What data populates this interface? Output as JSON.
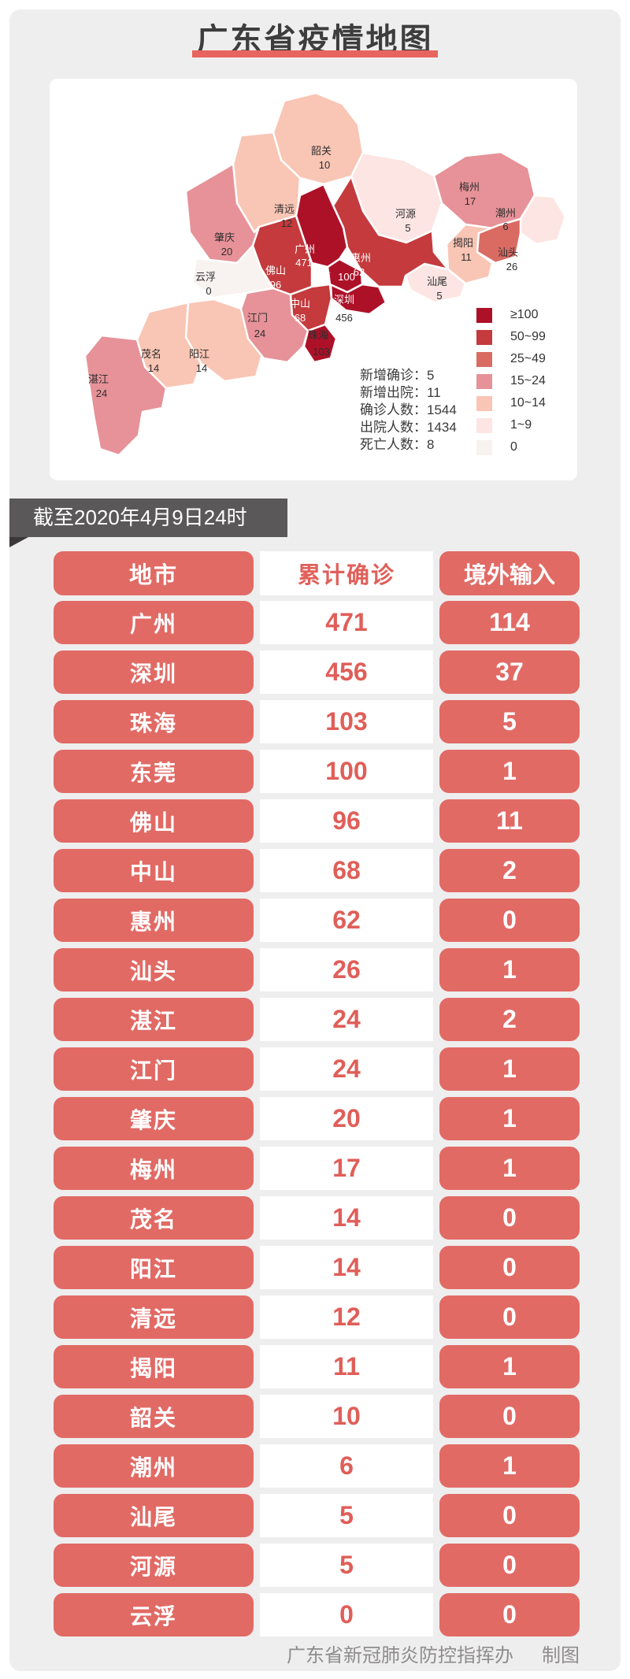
{
  "page": {
    "title": "广东省疫情地图",
    "accent_color": "#e8645e",
    "card_color": "#efeeee"
  },
  "banner": {
    "text": "截至2020年4月9日24时"
  },
  "stats": {
    "lines": [
      {
        "text": "新增确诊：5"
      },
      {
        "text": "新增出院：11"
      },
      {
        "text": "确诊人数：1544"
      },
      {
        "text": "出院人数：1434"
      },
      {
        "text": "死亡人数：8"
      }
    ]
  },
  "legend": {
    "buckets": [
      {
        "label": "≥100",
        "color": "#ad1128"
      },
      {
        "label": "50~99",
        "color": "#c43a3d"
      },
      {
        "label": "25~49",
        "color": "#d96b63"
      },
      {
        "label": "15~24",
        "color": "#e69298"
      },
      {
        "label": "10~14",
        "color": "#f9c5b4"
      },
      {
        "label": "1~9",
        "color": "#fce5e3"
      },
      {
        "label": "0",
        "color": "#f8f2f0"
      }
    ]
  },
  "map": {
    "cities": [
      {
        "name": "韶关",
        "value": "10"
      },
      {
        "name": "清远",
        "value": "12"
      },
      {
        "name": "河源",
        "value": "5"
      },
      {
        "name": "梅州",
        "value": "17"
      },
      {
        "name": "潮州",
        "value": "6"
      },
      {
        "name": "揭阳",
        "value": "11"
      },
      {
        "name": "汕头",
        "value": "26"
      },
      {
        "name": "汕尾",
        "value": "5"
      },
      {
        "name": "惠州",
        "value": "62"
      },
      {
        "name": "广州",
        "value": "471"
      },
      {
        "name": "东莞",
        "value": "100"
      },
      {
        "name": "深圳",
        "value": "456"
      },
      {
        "name": "中山",
        "value": "68"
      },
      {
        "name": "珠海",
        "value": "103"
      },
      {
        "name": "佛山",
        "value": "96"
      },
      {
        "name": "肇庆",
        "value": "20"
      },
      {
        "name": "云浮",
        "value": "0"
      },
      {
        "name": "江门",
        "value": "24"
      },
      {
        "name": "阳江",
        "value": "14"
      },
      {
        "name": "茂名",
        "value": "14"
      },
      {
        "name": "湛江",
        "value": "24"
      }
    ]
  },
  "table": {
    "headers": [
      "地市",
      "累计确诊",
      "境外输入"
    ],
    "rows": [
      [
        "广州",
        "471",
        "114"
      ],
      [
        "深圳",
        "456",
        "37"
      ],
      [
        "珠海",
        "103",
        "5"
      ],
      [
        "东莞",
        "100",
        "1"
      ],
      [
        "佛山",
        "96",
        "11"
      ],
      [
        "中山",
        "68",
        "2"
      ],
      [
        "惠州",
        "62",
        "0"
      ],
      [
        "汕头",
        "26",
        "1"
      ],
      [
        "湛江",
        "24",
        "2"
      ],
      [
        "江门",
        "24",
        "1"
      ],
      [
        "肇庆",
        "20",
        "1"
      ],
      [
        "梅州",
        "17",
        "1"
      ],
      [
        "茂名",
        "14",
        "0"
      ],
      [
        "阳江",
        "14",
        "0"
      ],
      [
        "清远",
        "12",
        "0"
      ],
      [
        "揭阳",
        "11",
        "1"
      ],
      [
        "韶关",
        "10",
        "0"
      ],
      [
        "潮州",
        "6",
        "1"
      ],
      [
        "汕尾",
        "5",
        "0"
      ],
      [
        "河源",
        "5",
        "0"
      ],
      [
        "云浮",
        "0",
        "0"
      ]
    ]
  },
  "footer": {
    "credit": "广东省新冠肺炎防控指挥办",
    "suffix": "制图"
  },
  "chart_data": {
    "type": "choropleth-map+table",
    "title": "广东省疫情地图",
    "as_of": "截至2020年4月9日24时",
    "legend_bins": [
      "≥100",
      "50~99",
      "25~49",
      "15~24",
      "10~14",
      "1~9",
      "0"
    ],
    "totals": {
      "新增确诊": 5,
      "新增出院": 11,
      "确诊人数": 1544,
      "出院人数": 1434,
      "死亡人数": 8
    },
    "series": [
      {
        "name": "累计确诊",
        "values": [
          471,
          456,
          103,
          100,
          96,
          68,
          62,
          26,
          24,
          24,
          20,
          17,
          14,
          14,
          12,
          11,
          10,
          6,
          5,
          5,
          0
        ]
      },
      {
        "name": "境外输入",
        "values": [
          114,
          37,
          5,
          1,
          11,
          2,
          0,
          1,
          2,
          1,
          1,
          1,
          0,
          0,
          0,
          1,
          0,
          1,
          0,
          0,
          0
        ]
      }
    ],
    "categories": [
      "广州",
      "深圳",
      "珠海",
      "东莞",
      "佛山",
      "中山",
      "惠州",
      "汕头",
      "湛江",
      "江门",
      "肇庆",
      "梅州",
      "茂名",
      "阳江",
      "清远",
      "揭阳",
      "韶关",
      "潮州",
      "汕尾",
      "河源",
      "云浮"
    ]
  }
}
